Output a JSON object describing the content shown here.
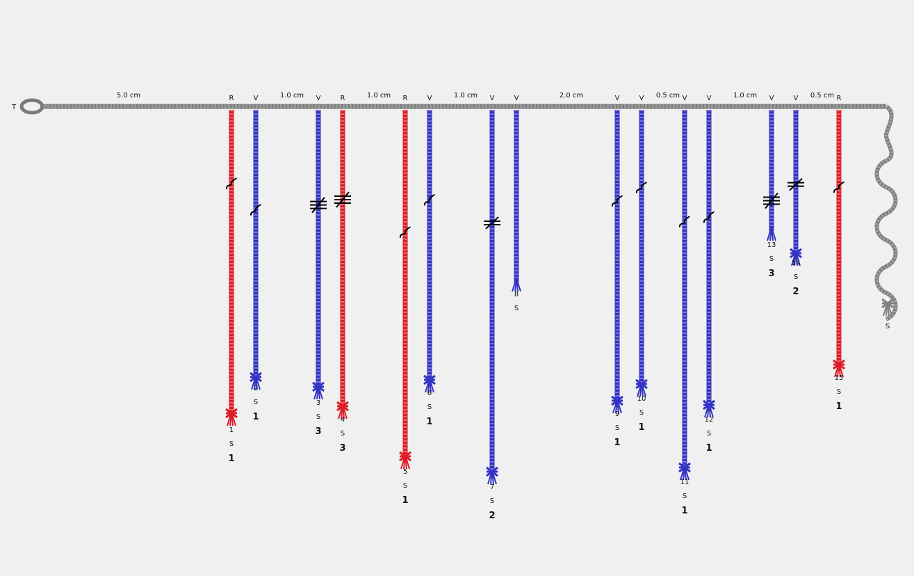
{
  "colors": {
    "background": "#f0f0f0",
    "primary_cord": "#7a7a7a",
    "R": "#dd1c26",
    "V": "#3333c4",
    "gray_pendant": "#808080",
    "knot_marks": "#000000"
  },
  "start_label": "T",
  "spacing_labels": [
    "5.0 cm",
    "1.0 cm",
    "1.0 cm",
    "1.0 cm",
    "2.0 cm",
    "0.5 cm",
    "1.0 cm",
    "0.5 cm"
  ],
  "cords": [
    {
      "color_code": "R",
      "num": "1",
      "twist": "S",
      "ply": "1",
      "marks": [
        {
          "kind": "s",
          "pos": 0.24
        }
      ]
    },
    {
      "color_code": "V",
      "num": "2",
      "twist": "S",
      "ply": "1",
      "marks": [
        {
          "kind": "s",
          "pos": 0.37
        }
      ]
    },
    {
      "color_code": "V",
      "num": "3",
      "twist": "S",
      "ply": "3",
      "marks": [
        {
          "kind": "hash3",
          "pos": 0.34
        }
      ]
    },
    {
      "color_code": "R",
      "num": "4",
      "twist": "S",
      "ply": "3",
      "marks": [
        {
          "kind": "hash3",
          "pos": 0.3
        }
      ]
    },
    {
      "color_code": "R",
      "num": "5",
      "twist": "S",
      "ply": "1",
      "marks": [
        {
          "kind": "s",
          "pos": 0.35
        }
      ]
    },
    {
      "color_code": "V",
      "num": "6",
      "twist": "S",
      "ply": "1",
      "marks": [
        {
          "kind": "s",
          "pos": 0.33
        }
      ]
    },
    {
      "color_code": "V",
      "num": "7",
      "twist": "S",
      "ply": "2",
      "marks": [
        {
          "kind": "hash2",
          "pos": 0.31
        }
      ]
    },
    {
      "color_code": "V",
      "num": "8",
      "twist": "S",
      "ply": "",
      "marks": []
    },
    {
      "color_code": "V",
      "num": "9",
      "twist": "S",
      "ply": "1",
      "marks": [
        {
          "kind": "s",
          "pos": 0.31
        }
      ]
    },
    {
      "color_code": "V",
      "num": "10",
      "twist": "S",
      "ply": "1",
      "marks": [
        {
          "kind": "s",
          "pos": 0.28
        }
      ]
    },
    {
      "color_code": "V",
      "num": "11",
      "twist": "S",
      "ply": "1",
      "marks": [
        {
          "kind": "s",
          "pos": 0.31
        }
      ]
    },
    {
      "color_code": "V",
      "num": "12",
      "twist": "S",
      "ply": "1",
      "marks": [
        {
          "kind": "s",
          "pos": 0.36
        }
      ]
    },
    {
      "color_code": "V",
      "num": "13",
      "twist": "S",
      "ply": "3",
      "marks": [
        {
          "kind": "hash3",
          "pos": 0.75
        }
      ]
    },
    {
      "color_code": "V",
      "num": "14",
      "twist": "S",
      "ply": "2",
      "marks": [
        {
          "kind": "hash2",
          "pos": 0.51
        }
      ]
    },
    {
      "color_code": "R",
      "num": "15",
      "twist": "S",
      "ply": "1",
      "marks": [
        {
          "kind": "s",
          "pos": 0.3
        }
      ]
    }
  ],
  "end_cord": {
    "twist": "S"
  }
}
